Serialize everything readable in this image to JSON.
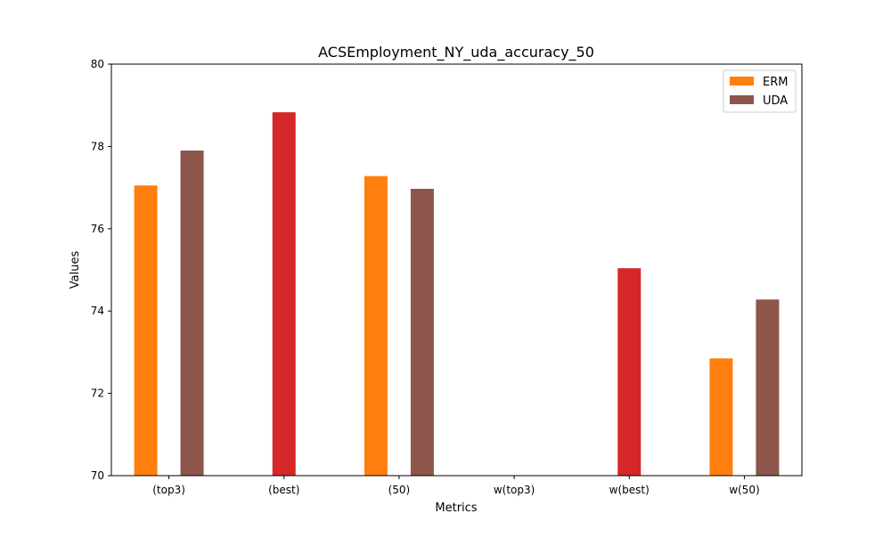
{
  "chart_data": {
    "type": "bar",
    "title": "ACSEmployment_NY_uda_accuracy_50",
    "xlabel": "Metrics",
    "ylabel": "Values",
    "ylim": [
      70,
      80
    ],
    "yticks": [
      70,
      72,
      74,
      76,
      78,
      80
    ],
    "categories": [
      "(top3)",
      "(best)",
      "(50)",
      "w(top3)",
      "w(best)",
      "w(50)"
    ],
    "series": [
      {
        "name": "ERM",
        "color": "#ff7f0e",
        "values": [
          77.05,
          null,
          77.28,
          null,
          null,
          72.85
        ]
      },
      {
        "name": "",
        "color": "#d62728",
        "values": [
          null,
          78.83,
          null,
          null,
          75.04,
          null
        ]
      },
      {
        "name": "UDA",
        "color": "#8c564b",
        "values": [
          77.9,
          null,
          76.97,
          null,
          null,
          74.28
        ]
      }
    ],
    "legend": {
      "position": "top-right",
      "entries": [
        {
          "label": "ERM",
          "color": "#ff7f0e"
        },
        {
          "label": "UDA",
          "color": "#8c564b"
        }
      ]
    },
    "grid": false
  }
}
